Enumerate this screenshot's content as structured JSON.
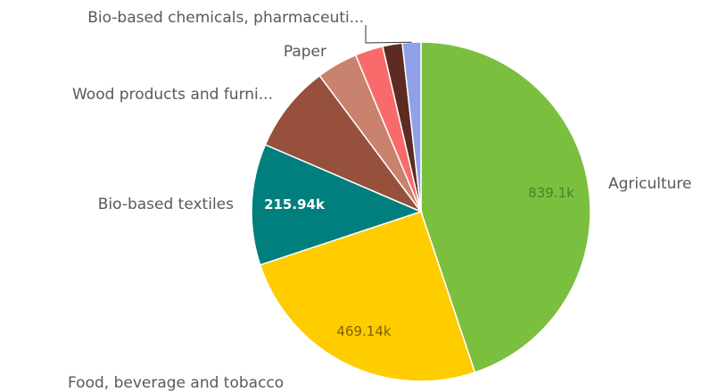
{
  "chart_data": {
    "type": "pie",
    "title": "",
    "categories": [
      "Agriculture",
      "Food, beverage and tobacco",
      "Bio-based textiles",
      "Wood products and furni...",
      "Paper",
      "",
      "",
      "Bio-based chemicals, pharmaceuti..."
    ],
    "values": [
      839100,
      469140,
      215940,
      156000,
      73000,
      50000,
      35000,
      33000
    ],
    "value_labels": [
      "839.1k",
      "469.14k",
      "215.94k",
      "",
      "",
      "",
      "",
      ""
    ],
    "colors": [
      "#7bbf3e",
      "#ffcc00",
      "#007f7e",
      "#96503c",
      "#c9826e",
      "#f96b6b",
      "#5c2b22",
      "#8fa1e8"
    ],
    "label_colors": [
      "#4f7f27",
      "#7a6300",
      "#ffffff",
      "",
      "",
      "",
      "",
      ""
    ],
    "legend": "none",
    "start_angle_deg": 0,
    "direction": "clockwise"
  }
}
